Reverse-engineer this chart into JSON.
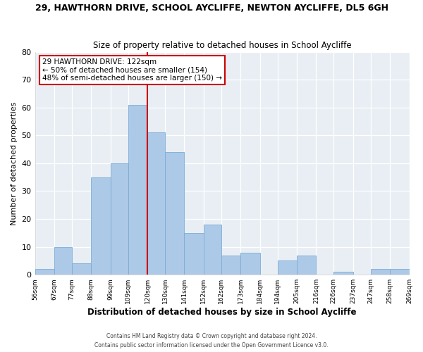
{
  "title1": "29, HAWTHORN DRIVE, SCHOOL AYCLIFFE, NEWTON AYCLIFFE, DL5 6GH",
  "title2": "Size of property relative to detached houses in School Aycliffe",
  "xlabel": "Distribution of detached houses by size in School Aycliffe",
  "ylabel": "Number of detached properties",
  "bin_edges": [
    56,
    67,
    77,
    88,
    99,
    109,
    120,
    130,
    141,
    152,
    162,
    173,
    184,
    194,
    205,
    216,
    226,
    237,
    247,
    258,
    269
  ],
  "bar_heights": [
    2,
    10,
    4,
    35,
    40,
    61,
    51,
    44,
    15,
    18,
    7,
    8,
    0,
    5,
    7,
    0,
    1,
    0,
    2,
    2
  ],
  "bar_color": "#adc9e8",
  "bar_edge_color": "#7aadd4",
  "property_line_x": 120,
  "property_line_color": "#cc0000",
  "ylim": [
    0,
    80
  ],
  "annotation_line1": "29 HAWTHORN DRIVE: 122sqm",
  "annotation_line2": "← 50% of detached houses are smaller (154)",
  "annotation_line3": "48% of semi-detached houses are larger (150) →",
  "annotation_box_color": "#ffffff",
  "annotation_box_edge": "#cc0000",
  "footer1": "Contains HM Land Registry data © Crown copyright and database right 2024.",
  "footer2": "Contains public sector information licensed under the Open Government Licence v3.0.",
  "tick_labels": [
    "56sqm",
    "67sqm",
    "77sqm",
    "88sqm",
    "99sqm",
    "109sqm",
    "120sqm",
    "130sqm",
    "141sqm",
    "152sqm",
    "162sqm",
    "173sqm",
    "184sqm",
    "194sqm",
    "205sqm",
    "216sqm",
    "226sqm",
    "237sqm",
    "247sqm",
    "258sqm",
    "269sqm"
  ],
  "yticks": [
    0,
    10,
    20,
    30,
    40,
    50,
    60,
    70,
    80
  ],
  "background_color": "#ffffff",
  "plot_bg_color": "#e8eef4"
}
